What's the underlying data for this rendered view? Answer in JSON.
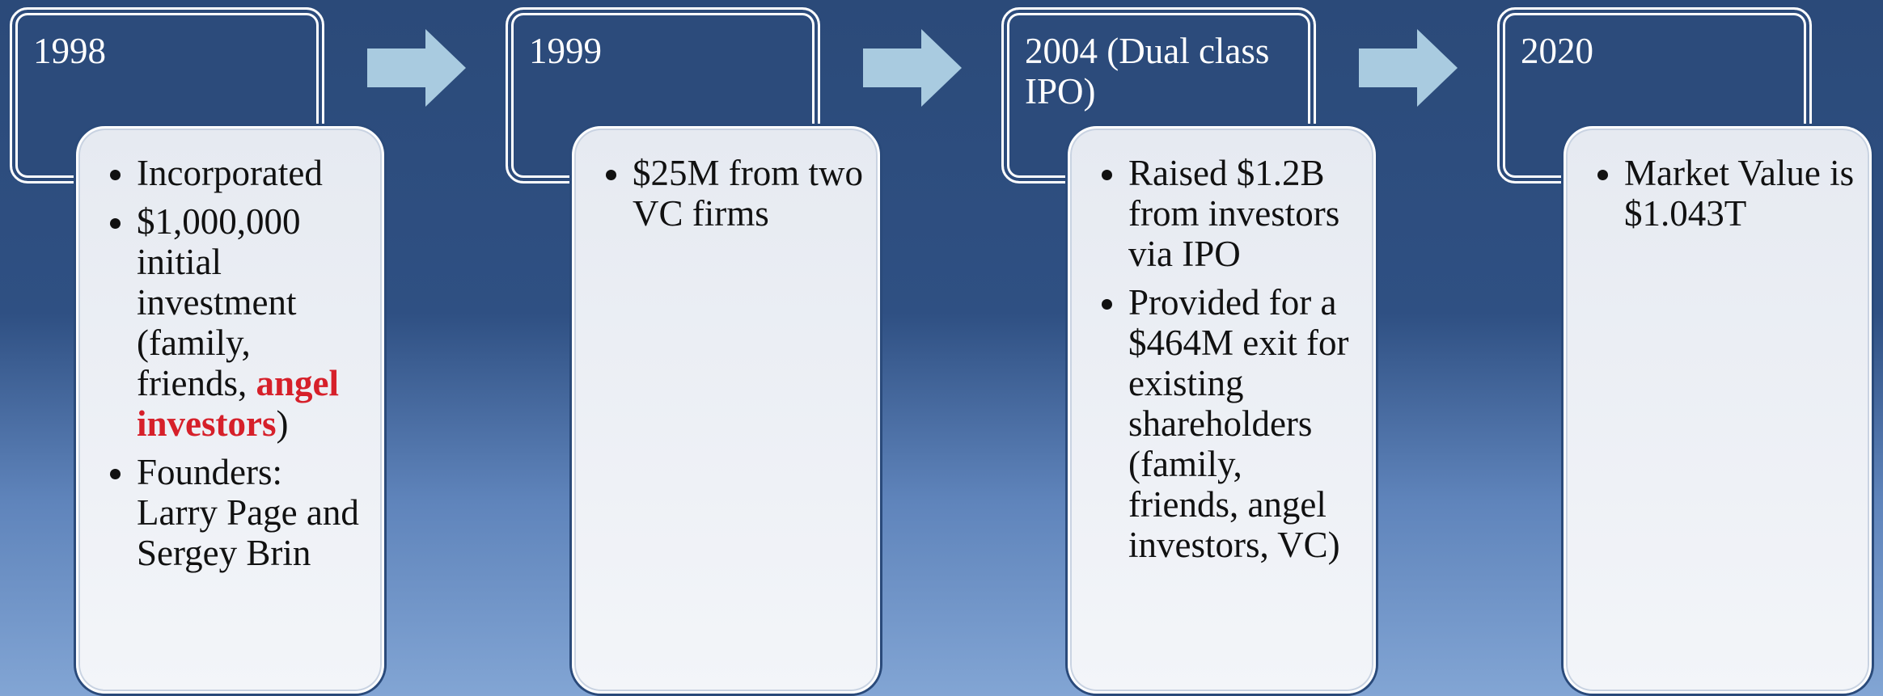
{
  "steps": [
    {
      "title": "1998",
      "bullets": [
        [
          "Incorporated"
        ],
        [
          "$1,000,000 initial investment (family, friends, ",
          {
            "text": "angel investors",
            "emphasis": true
          },
          ")"
        ],
        [
          "Founders: Larry Page and Sergey Brin"
        ]
      ]
    },
    {
      "title": "1999",
      "bullets": [
        [
          "$25M from two VC firms"
        ]
      ]
    },
    {
      "title": "2004 (Dual class IPO)",
      "bullets": [
        [
          "Raised $1.2B from investors via IPO"
        ],
        [
          "Provided for a $464M exit for existing shareholders (family, friends, angel investors, VC)"
        ]
      ]
    },
    {
      "title": "2020",
      "bullets": [
        [
          "Market Value is $1.043T"
        ]
      ]
    }
  ]
}
